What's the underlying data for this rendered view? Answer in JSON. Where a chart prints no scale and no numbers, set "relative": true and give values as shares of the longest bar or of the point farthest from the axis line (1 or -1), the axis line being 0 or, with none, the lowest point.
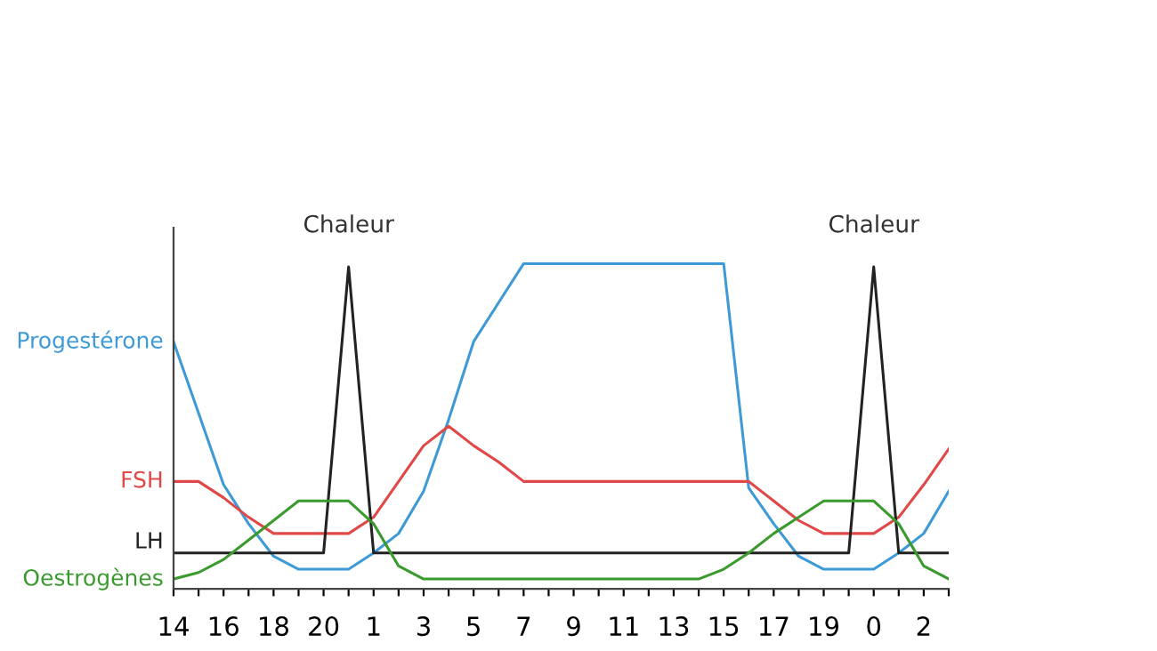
{
  "chart_data": {
    "type": "line",
    "relative": true,
    "legend": false,
    "grid": false,
    "marker": "none",
    "line_style": "solid",
    "categories": [
      "14",
      null,
      "16",
      null,
      "18",
      null,
      "20",
      null,
      "1",
      null,
      "3",
      null,
      "5",
      null,
      "7",
      null,
      "9",
      null,
      "11",
      null,
      "13",
      null,
      "15",
      null,
      "17",
      null,
      "19",
      null,
      "0",
      null,
      "2",
      null
    ],
    "series": [
      {
        "name": "Progestérone",
        "color": "#3d9ad6",
        "values": [
          0.76,
          0.54,
          0.32,
          0.2,
          0.1,
          0.06,
          0.06,
          0.06,
          0.11,
          0.17,
          0.3,
          0.52,
          0.76,
          0.88,
          1,
          1,
          1,
          1,
          1,
          1,
          1,
          1,
          1,
          0.31,
          0.2,
          0.1,
          0.06,
          0.06,
          0.06,
          0.11,
          0.17,
          0.3
        ]
      },
      {
        "name": "FSH",
        "color": "#e04848",
        "values": [
          0.33,
          0.33,
          0.28,
          0.22,
          0.17,
          0.17,
          0.17,
          0.17,
          0.22,
          0.33,
          0.44,
          0.5,
          0.44,
          0.39,
          0.33,
          0.33,
          0.33,
          0.33,
          0.33,
          0.33,
          0.33,
          0.33,
          0.33,
          0.33,
          0.27,
          0.21,
          0.17,
          0.17,
          0.17,
          0.22,
          0.32,
          0.43
        ]
      },
      {
        "name": "LH",
        "color": "#222222",
        "values": [
          0.11,
          0.11,
          0.11,
          0.11,
          0.11,
          0.11,
          0.11,
          0.99,
          0.11,
          0.11,
          0.11,
          0.11,
          0.11,
          0.11,
          0.11,
          0.11,
          0.11,
          0.11,
          0.11,
          0.11,
          0.11,
          0.11,
          0.11,
          0.11,
          0.11,
          0.11,
          0.11,
          0.11,
          0.99,
          0.11,
          0.11,
          0.11
        ]
      },
      {
        "name": "Oestrogènes",
        "color": "#3a9a2e",
        "values": [
          0.03,
          0.05,
          0.09,
          0.15,
          0.21,
          0.27,
          0.27,
          0.27,
          0.2,
          0.07,
          0.03,
          0.03,
          0.03,
          0.03,
          0.03,
          0.03,
          0.03,
          0.03,
          0.03,
          0.03,
          0.03,
          0.03,
          0.06,
          0.11,
          0.17,
          0.22,
          0.27,
          0.27,
          0.27,
          0.2,
          0.07,
          0.03
        ]
      }
    ],
    "annotations": [
      "Chaleur",
      "Chaleur"
    ]
  }
}
